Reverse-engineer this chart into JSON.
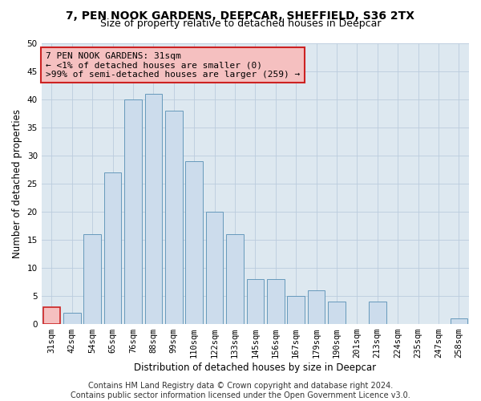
{
  "title_line1": "7, PEN NOOK GARDENS, DEEPCAR, SHEFFIELD, S36 2TX",
  "title_line2": "Size of property relative to detached houses in Deepcar",
  "xlabel": "Distribution of detached houses by size in Deepcar",
  "ylabel": "Number of detached properties",
  "categories": [
    "31sqm",
    "42sqm",
    "54sqm",
    "65sqm",
    "76sqm",
    "88sqm",
    "99sqm",
    "110sqm",
    "122sqm",
    "133sqm",
    "145sqm",
    "156sqm",
    "167sqm",
    "179sqm",
    "190sqm",
    "201sqm",
    "213sqm",
    "224sqm",
    "235sqm",
    "247sqm",
    "258sqm"
  ],
  "values": [
    3,
    2,
    16,
    27,
    40,
    41,
    38,
    29,
    20,
    16,
    8,
    8,
    5,
    6,
    4,
    0,
    4,
    0,
    0,
    0,
    1
  ],
  "bar_color": "#ccdcec",
  "bar_edge_color": "#6699bb",
  "highlight_index": 0,
  "highlight_color": "#f5c0c0",
  "highlight_edge_color": "#cc2222",
  "annotation_text": "7 PEN NOOK GARDENS: 31sqm\n← <1% of detached houses are smaller (0)\n>99% of semi-detached houses are larger (259) →",
  "annotation_box_color": "#f5c0c0",
  "annotation_box_edge": "#cc2222",
  "ylim": [
    0,
    50
  ],
  "yticks": [
    0,
    5,
    10,
    15,
    20,
    25,
    30,
    35,
    40,
    45,
    50
  ],
  "grid_color": "#bbccdd",
  "background_color": "#dde8f0",
  "footnote": "Contains HM Land Registry data © Crown copyright and database right 2024.\nContains public sector information licensed under the Open Government Licence v3.0.",
  "title_fontsize": 10,
  "subtitle_fontsize": 9,
  "axis_label_fontsize": 8.5,
  "tick_fontsize": 7.5,
  "annotation_fontsize": 8,
  "footnote_fontsize": 7
}
